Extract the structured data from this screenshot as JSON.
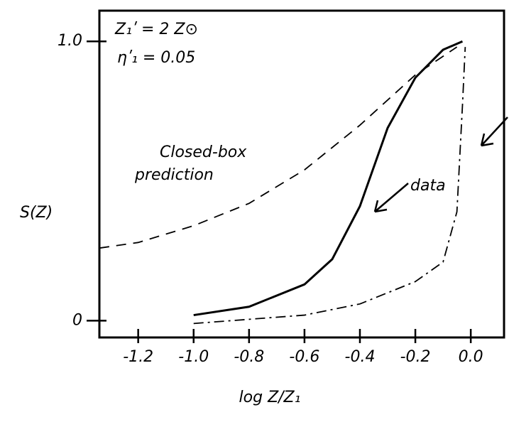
{
  "chart_data": {
    "type": "line",
    "x_label": "log Z/Z₁",
    "y_label": "S(Z)",
    "annotations": [
      "Z₁ʹ = 2 Z⊙",
      "ηʹ₁ = 0.05"
    ],
    "xlim": [
      -1.34,
      0.12
    ],
    "ylim": [
      -0.06,
      1.11
    ],
    "xticks": [
      -1.2,
      {
        "value": -1,
        "label": "-1.0"
      },
      -0.8,
      -0.6,
      -0.4,
      -0.2,
      {
        "value": 0,
        "label": "0.0"
      }
    ],
    "yticks": [
      0,
      {
        "value": 1,
        "label": "1.0"
      }
    ],
    "grid": false,
    "series": [
      {
        "name": "data",
        "color": "#000000",
        "line_style": "solid",
        "x": [
          -1.0,
          -0.8,
          -0.6,
          -0.5,
          -0.4,
          -0.3,
          -0.2,
          -0.1,
          -0.03
        ],
        "values": [
          0.02,
          0.05,
          0.13,
          0.22,
          0.41,
          0.69,
          0.87,
          0.97,
          1.0
        ]
      },
      {
        "name": "Closed-box prediction",
        "color": "#000000",
        "line_style": "dashed",
        "x": [
          -1.34,
          -1.2,
          -1.0,
          -0.8,
          -0.6,
          -0.4,
          -0.2,
          -0.05
        ],
        "values": [
          0.26,
          0.28,
          0.34,
          0.42,
          0.54,
          0.7,
          0.88,
          0.98
        ]
      },
      {
        "color": "#000000",
        "line_style": "dashdot",
        "x": [
          -1.0,
          -0.6,
          -0.4,
          -0.2,
          -0.1,
          -0.05,
          -0.03,
          -0.02
        ],
        "values": [
          -0.01,
          0.02,
          0.06,
          0.14,
          0.21,
          0.39,
          0.77,
          0.98
        ]
      }
    ]
  }
}
